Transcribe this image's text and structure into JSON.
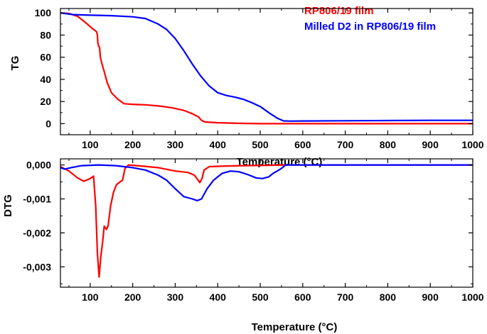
{
  "chart_data": [
    {
      "type": "line",
      "ylabel": "TG",
      "xlabel": "Temperature (°C)",
      "xlim": [
        30,
        1000
      ],
      "ylim": [
        -10,
        104
      ],
      "x_ticks": [
        100,
        200,
        300,
        400,
        500,
        600,
        700,
        800,
        900,
        1000
      ],
      "x_tick_labels": [
        "100",
        "200",
        "300",
        "400",
        "500",
        "600",
        "700",
        "800",
        "900",
        "1000"
      ],
      "y_ticks": [
        0,
        20,
        40,
        60,
        80,
        100
      ],
      "y_tick_labels": [
        "0",
        "20",
        "40",
        "60",
        "80",
        "100"
      ],
      "grid": false,
      "legend_position": "top-right",
      "series": [
        {
          "name": "RP806/19 film",
          "color": "#ff0000",
          "points": [
            [
              30,
              100
            ],
            [
              50,
              99.5
            ],
            [
              70,
              97
            ],
            [
              90,
              91
            ],
            [
              105,
              86
            ],
            [
              112,
              84
            ],
            [
              115,
              83
            ],
            [
              117,
              80
            ],
            [
              118,
              73
            ],
            [
              120,
              70
            ],
            [
              122,
              69
            ],
            [
              124,
              60
            ],
            [
              127,
              55
            ],
            [
              133,
              47
            ],
            [
              140,
              37
            ],
            [
              150,
              28
            ],
            [
              165,
              22
            ],
            [
              180,
              18
            ],
            [
              200,
              17.5
            ],
            [
              230,
              17
            ],
            [
              260,
              16
            ],
            [
              290,
              14.5
            ],
            [
              320,
              12
            ],
            [
              340,
              9
            ],
            [
              355,
              6
            ],
            [
              362,
              3
            ],
            [
              370,
              1.5
            ],
            [
              400,
              0.8
            ],
            [
              450,
              0.3
            ],
            [
              500,
              0
            ],
            [
              600,
              0
            ],
            [
              800,
              0
            ],
            [
              1000,
              0
            ]
          ]
        },
        {
          "name": "Milled D2 in RP806/19 film",
          "color": "#0000ff",
          "points": [
            [
              30,
              100
            ],
            [
              60,
              98.5
            ],
            [
              100,
              98
            ],
            [
              150,
              97.5
            ],
            [
              200,
              96.5
            ],
            [
              230,
              95
            ],
            [
              260,
              90
            ],
            [
              280,
              85
            ],
            [
              300,
              77
            ],
            [
              320,
              66
            ],
            [
              340,
              54
            ],
            [
              360,
              43
            ],
            [
              380,
              34
            ],
            [
              400,
              28
            ],
            [
              420,
              25.5
            ],
            [
              440,
              24
            ],
            [
              460,
              22
            ],
            [
              480,
              19
            ],
            [
              500,
              15.5
            ],
            [
              520,
              10
            ],
            [
              540,
              5
            ],
            [
              555,
              2.5
            ],
            [
              570,
              2.3
            ],
            [
              600,
              2.4
            ],
            [
              700,
              2.6
            ],
            [
              800,
              2.8
            ],
            [
              900,
              3
            ],
            [
              1000,
              3
            ]
          ]
        }
      ]
    },
    {
      "type": "line",
      "ylabel": "DTG",
      "xlabel": "Temperature (°C)",
      "xlim": [
        30,
        1000
      ],
      "ylim": [
        -0.0036,
        0.00018
      ],
      "x_ticks": [
        100,
        200,
        300,
        400,
        500,
        600,
        700,
        800,
        900,
        1000
      ],
      "x_tick_labels": [
        "100",
        "200",
        "300",
        "400",
        "500",
        "600",
        "700",
        "800",
        "900",
        "1000"
      ],
      "y_ticks": [
        -0.003,
        -0.002,
        -0.001,
        0
      ],
      "y_tick_labels": [
        "-0,003",
        "-0,002",
        "-0,001",
        "0,000"
      ],
      "grid": false,
      "series": [
        {
          "name": "RP806/19 film",
          "color": "#ff0000",
          "points": [
            [
              30,
              -5e-05
            ],
            [
              50,
              -0.00018
            ],
            [
              70,
              -0.00038
            ],
            [
              85,
              -0.00048
            ],
            [
              100,
              -0.0004
            ],
            [
              108,
              -0.00033
            ],
            [
              113,
              -0.0012
            ],
            [
              117,
              -0.0026
            ],
            [
              121,
              -0.0033
            ],
            [
              125,
              -0.0027
            ],
            [
              129,
              -0.0023
            ],
            [
              133,
              -0.0018
            ],
            [
              138,
              -0.0019
            ],
            [
              142,
              -0.0018
            ],
            [
              148,
              -0.0012
            ],
            [
              155,
              -0.0008
            ],
            [
              162,
              -0.00058
            ],
            [
              170,
              -0.0005
            ],
            [
              176,
              -0.00045
            ],
            [
              182,
              -0.0001
            ],
            [
              190,
              0
            ],
            [
              220,
              -3e-05
            ],
            [
              260,
              -8e-05
            ],
            [
              300,
              -0.00018
            ],
            [
              330,
              -0.00022
            ],
            [
              345,
              -0.0003
            ],
            [
              358,
              -0.00052
            ],
            [
              363,
              -0.0004
            ],
            [
              368,
              -0.00015
            ],
            [
              380,
              -5e-05
            ],
            [
              420,
              -3e-05
            ],
            [
              460,
              -2e-05
            ],
            [
              520,
              -1e-05
            ],
            [
              560,
              0
            ],
            [
              700,
              0
            ],
            [
              1000,
              0
            ]
          ]
        },
        {
          "name": "Milled D2 in RP806/19 film",
          "color": "#0000ff",
          "points": [
            [
              30,
              -8e-05
            ],
            [
              40,
              -0.00012
            ],
            [
              55,
              -8e-05
            ],
            [
              80,
              -2e-05
            ],
            [
              120,
              0
            ],
            [
              160,
              -2e-05
            ],
            [
              200,
              -8e-05
            ],
            [
              230,
              -0.00015
            ],
            [
              260,
              -0.0003
            ],
            [
              280,
              -0.00045
            ],
            [
              300,
              -0.0007
            ],
            [
              320,
              -0.00093
            ],
            [
              340,
              -0.001
            ],
            [
              352,
              -0.00105
            ],
            [
              362,
              -0.001
            ],
            [
              375,
              -0.0007
            ],
            [
              390,
              -0.00045
            ],
            [
              410,
              -0.00025
            ],
            [
              430,
              -0.00018
            ],
            [
              450,
              -0.0002
            ],
            [
              470,
              -0.00028
            ],
            [
              490,
              -0.00038
            ],
            [
              505,
              -0.0004
            ],
            [
              520,
              -0.00035
            ],
            [
              530,
              -0.00025
            ],
            [
              540,
              -0.00018
            ],
            [
              550,
              -0.0001
            ],
            [
              560,
              0
            ],
            [
              600,
              0
            ],
            [
              1000,
              0
            ]
          ]
        }
      ]
    }
  ]
}
